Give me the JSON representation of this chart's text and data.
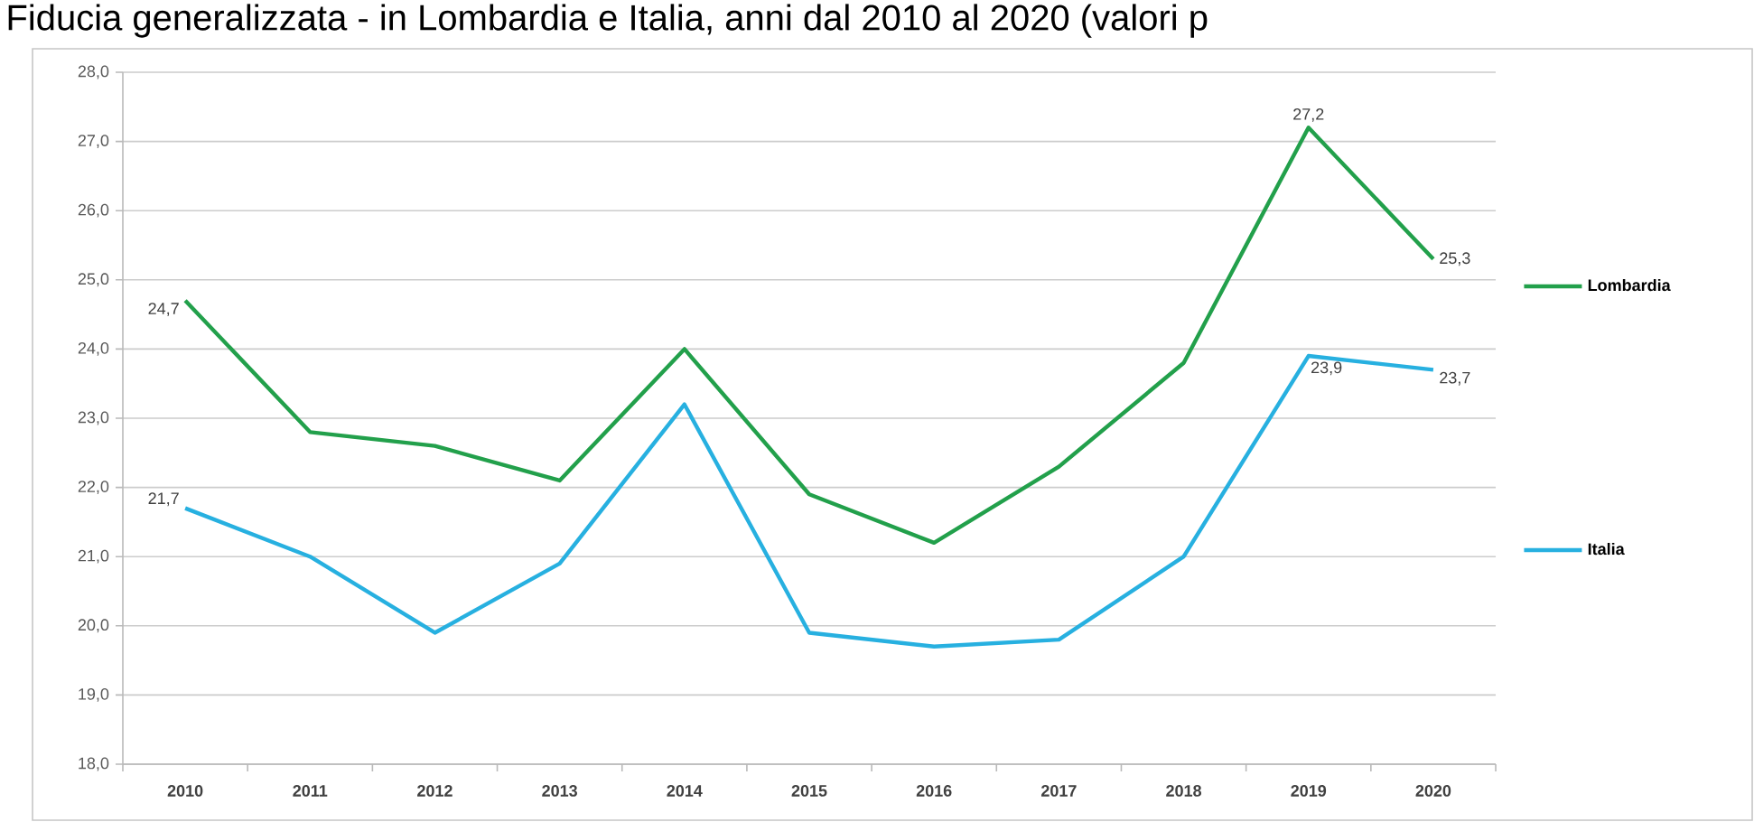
{
  "chart_data": {
    "type": "line",
    "title": "Fiducia generalizzata - in Lombardia e Italia, anni dal 2010 al 2020 (valori p",
    "categories": [
      "2010",
      "2011",
      "2012",
      "2013",
      "2014",
      "2015",
      "2016",
      "2017",
      "2018",
      "2019",
      "2020"
    ],
    "series": [
      {
        "name": "Lombardia",
        "color": "#22a04b",
        "values": [
          24.7,
          22.8,
          22.6,
          22.1,
          24.0,
          21.9,
          21.2,
          22.3,
          23.8,
          27.2,
          25.3
        ],
        "value_labels": [
          "24,7",
          null,
          null,
          null,
          null,
          null,
          null,
          null,
          null,
          "27,2",
          "25,3"
        ]
      },
      {
        "name": "Italia",
        "color": "#27b0e0",
        "values": [
          21.7,
          21.0,
          19.9,
          20.9,
          23.2,
          19.9,
          19.7,
          19.8,
          21.0,
          23.9,
          23.7
        ],
        "value_labels": [
          "21,7",
          null,
          null,
          null,
          null,
          null,
          null,
          null,
          null,
          "23,9",
          "23,7"
        ]
      }
    ],
    "ylim": [
      18,
      28
    ],
    "yticks": [
      {
        "value": 18,
        "label": "18,0"
      },
      {
        "value": 19,
        "label": "19,0"
      },
      {
        "value": 20,
        "label": "20,0"
      },
      {
        "value": 21,
        "label": "21,0"
      },
      {
        "value": 22,
        "label": "22,0"
      },
      {
        "value": 23,
        "label": "23,0"
      },
      {
        "value": 24,
        "label": "24,0"
      },
      {
        "value": 25,
        "label": "25,0"
      },
      {
        "value": 26,
        "label": "26,0"
      },
      {
        "value": 27,
        "label": "27,0"
      },
      {
        "value": 28,
        "label": "28,0"
      }
    ],
    "grid": "y",
    "legend": "right",
    "marker": "none",
    "line_style": "solid"
  }
}
